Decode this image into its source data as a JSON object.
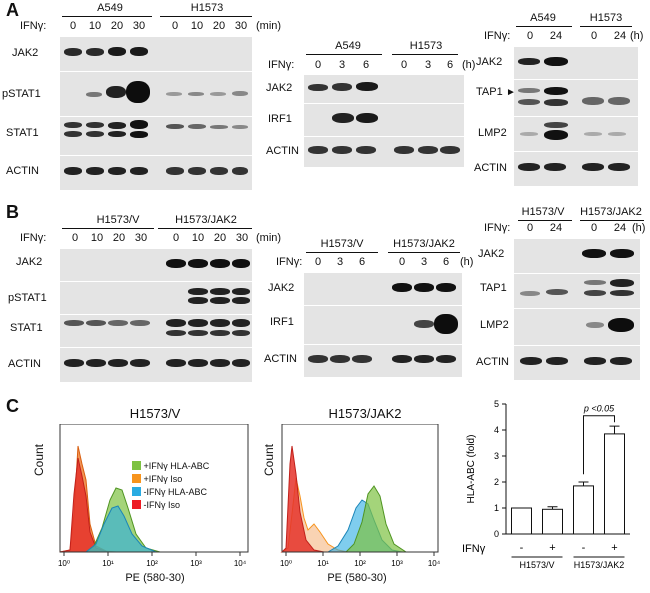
{
  "panels": {
    "a": "A",
    "b": "B",
    "c": "C"
  },
  "a1": {
    "groups": [
      "A549",
      "H1573"
    ],
    "treat": "IFNγ:",
    "times": [
      "0",
      "10",
      "20",
      "30",
      "0",
      "10",
      "20",
      "30"
    ],
    "unit": "(min)",
    "rows": [
      "JAK2",
      "pSTAT1",
      "STAT1",
      "ACTIN"
    ]
  },
  "a2": {
    "groups": [
      "A549",
      "H1573"
    ],
    "treat": "IFNγ:",
    "times": [
      "0",
      "3",
      "6",
      "0",
      "3",
      "6"
    ],
    "unit": "(h)",
    "rows": [
      "JAK2",
      "IRF1",
      "ACTIN"
    ]
  },
  "a3": {
    "groups": [
      "A549",
      "H1573"
    ],
    "treat": "IFNγ:",
    "times": [
      "0",
      "24",
      "0",
      "24"
    ],
    "unit": "(h)",
    "rows": [
      "JAK2",
      "TAP1",
      "LMP2",
      "ACTIN"
    ]
  },
  "b1": {
    "groups": [
      "H1573/V",
      "H1573/JAK2"
    ],
    "treat": "IFNγ:",
    "times": [
      "0",
      "10",
      "20",
      "30",
      "0",
      "10",
      "20",
      "30"
    ],
    "unit": "(min)",
    "rows": [
      "JAK2",
      "pSTAT1",
      "STAT1",
      "ACTIN"
    ]
  },
  "b2": {
    "groups": [
      "H1573/V",
      "H1573/JAK2"
    ],
    "treat": "IFNγ:",
    "times": [
      "0",
      "3",
      "6",
      "0",
      "3",
      "6"
    ],
    "unit": "(h)",
    "rows": [
      "JAK2",
      "IRF1",
      "ACTIN"
    ]
  },
  "b3": {
    "groups": [
      "H1573/V",
      "H1573/JAK2"
    ],
    "treat": "IFNγ:",
    "times": [
      "0",
      "24",
      "0",
      "24"
    ],
    "unit": "(h)",
    "rows": [
      "JAK2",
      "TAP1",
      "LMP2",
      "ACTIN"
    ]
  },
  "flow1": {
    "title": "H1573/V",
    "ylabel": "Count",
    "xlabel": "PE (580-30)",
    "legend": [
      "+IFNγ HLA-ABC",
      "+IFNγ Iso",
      "-IFNγ HLA-ABC",
      "-IFNγ Iso"
    ],
    "legend_colors": [
      "#7dc242",
      "#f7941d",
      "#29abe2",
      "#ed1c24"
    ],
    "xticks": [
      "10⁰",
      "10¹",
      "10²",
      "10³",
      "10⁴"
    ]
  },
  "flow2": {
    "title": "H1573/JAK2",
    "ylabel": "Count",
    "xlabel": "PE (580-30)",
    "xticks": [
      "10⁰",
      "10¹",
      "10²",
      "10³",
      "10⁴"
    ]
  },
  "chart_data": {
    "type": "bar",
    "categories": [
      "H1573/V -",
      "H1573/V +",
      "H1573/JAK2 -",
      "H1573/JAK2 +"
    ],
    "values": [
      1.0,
      0.95,
      1.85,
      3.85
    ],
    "errors": [
      0.0,
      0.1,
      0.15,
      0.3
    ],
    "ylabel": "HLA-ABC (fold)",
    "ylim": [
      0,
      5
    ],
    "yticks": [
      "0",
      "1",
      "2",
      "3",
      "4",
      "5"
    ],
    "treat_label": "IFNγ",
    "treat_signs": [
      "-",
      "+",
      "-",
      "+"
    ],
    "groups": [
      "H1573/V",
      "H1573/JAK2"
    ],
    "annotation": "p <0.05"
  }
}
